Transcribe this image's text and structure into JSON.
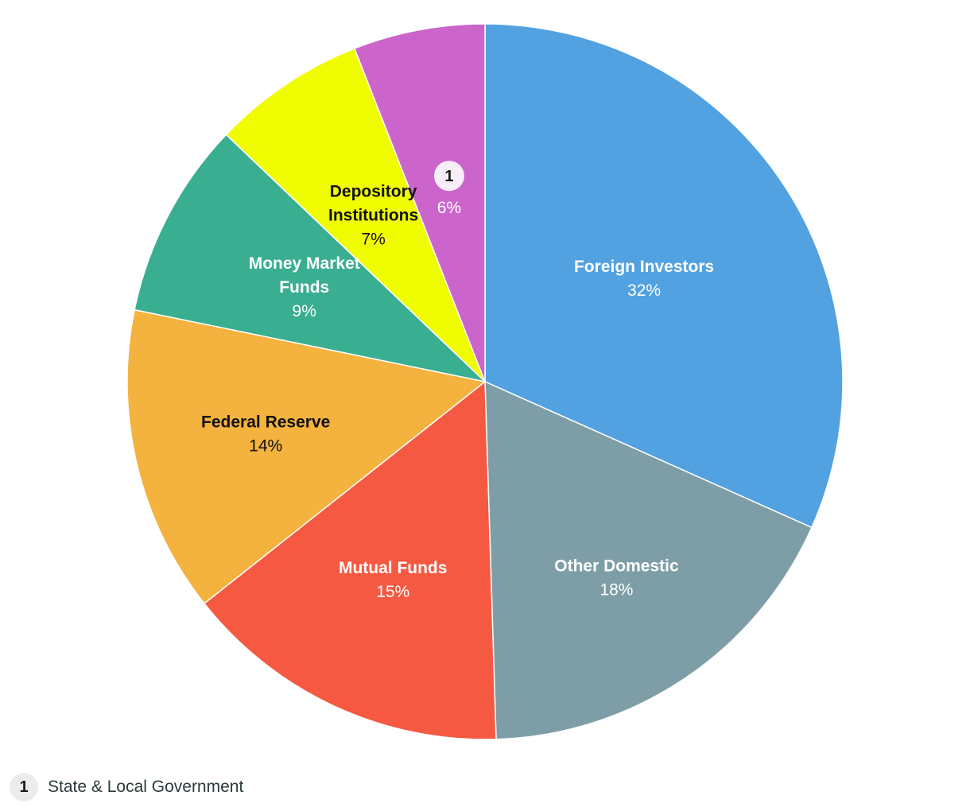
{
  "chart_data": {
    "type": "pie",
    "title": "",
    "slices": [
      {
        "label": "Foreign Investors",
        "value": 32,
        "value_label": "32%",
        "color": "#52a1e0",
        "text_color": "#ffffff"
      },
      {
        "label": "Other Domestic",
        "value": 18,
        "value_label": "18%",
        "color": "#7e9ea7",
        "text_color": "#ffffff"
      },
      {
        "label": "Mutual Funds",
        "value": 15,
        "value_label": "15%",
        "color": "#f65942",
        "text_color": "#ffffff"
      },
      {
        "label": "Federal Reserve",
        "value": 14,
        "value_label": "14%",
        "color": "#f4b23f",
        "text_color": "#111111"
      },
      {
        "label": "Money Market Funds",
        "display_lines": [
          "Money Market",
          "Funds"
        ],
        "value": 9,
        "value_label": "9%",
        "color": "#3aae91",
        "text_color": "#ffffff"
      },
      {
        "label": "Depository Institutions",
        "display_lines": [
          "Depository",
          "Institutions"
        ],
        "value": 7,
        "value_label": "7%",
        "color": "#f0fc00",
        "text_color": "#111111"
      },
      {
        "label": "State & Local Government",
        "marker": "1",
        "value": 6,
        "value_label": "6%",
        "color": "#cb64cb",
        "text_color": "#ffffff"
      }
    ]
  },
  "footnote": {
    "marker": "1",
    "text": "State & Local Government"
  }
}
